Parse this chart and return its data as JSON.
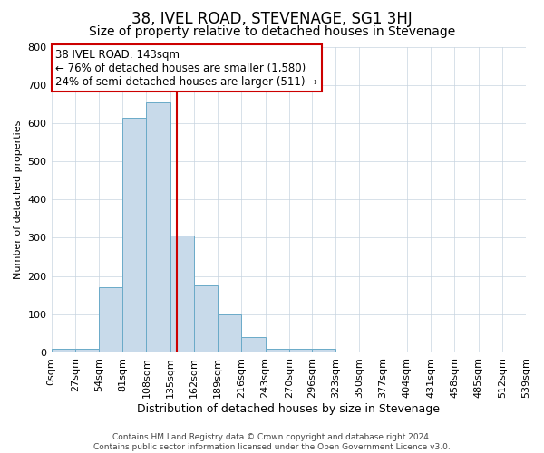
{
  "title": "38, IVEL ROAD, STEVENAGE, SG1 3HJ",
  "subtitle": "Size of property relative to detached houses in Stevenage",
  "xlabel": "Distribution of detached houses by size in Stevenage",
  "ylabel": "Number of detached properties",
  "bin_edges": [
    0,
    27,
    54,
    81,
    108,
    135,
    162,
    189,
    216,
    243,
    270,
    296,
    323,
    350,
    377,
    404,
    431,
    458,
    485,
    512,
    539
  ],
  "bin_heights": [
    10,
    10,
    170,
    615,
    655,
    305,
    175,
    100,
    40,
    10,
    10,
    10,
    0,
    0,
    0,
    0,
    0,
    0,
    0,
    0
  ],
  "bar_facecolor": "#c8daea",
  "bar_edgecolor": "#6aaac8",
  "vline_x": 143,
  "vline_color": "#cc0000",
  "ylim": [
    0,
    800
  ],
  "yticks": [
    0,
    100,
    200,
    300,
    400,
    500,
    600,
    700,
    800
  ],
  "annotation_title": "38 IVEL ROAD: 143sqm",
  "annotation_line1": "← 76% of detached houses are smaller (1,580)",
  "annotation_line2": "24% of semi-detached houses are larger (511) →",
  "annotation_box_edgecolor": "#cc0000",
  "footer_line1": "Contains HM Land Registry data © Crown copyright and database right 2024.",
  "footer_line2": "Contains public sector information licensed under the Open Government Licence v3.0.",
  "title_fontsize": 12,
  "subtitle_fontsize": 10,
  "xlabel_fontsize": 9,
  "ylabel_fontsize": 8,
  "tick_fontsize": 8,
  "footer_fontsize": 6.5,
  "annotation_fontsize": 8.5,
  "grid_color": "#c8d4e0",
  "background_color": "#ffffff"
}
